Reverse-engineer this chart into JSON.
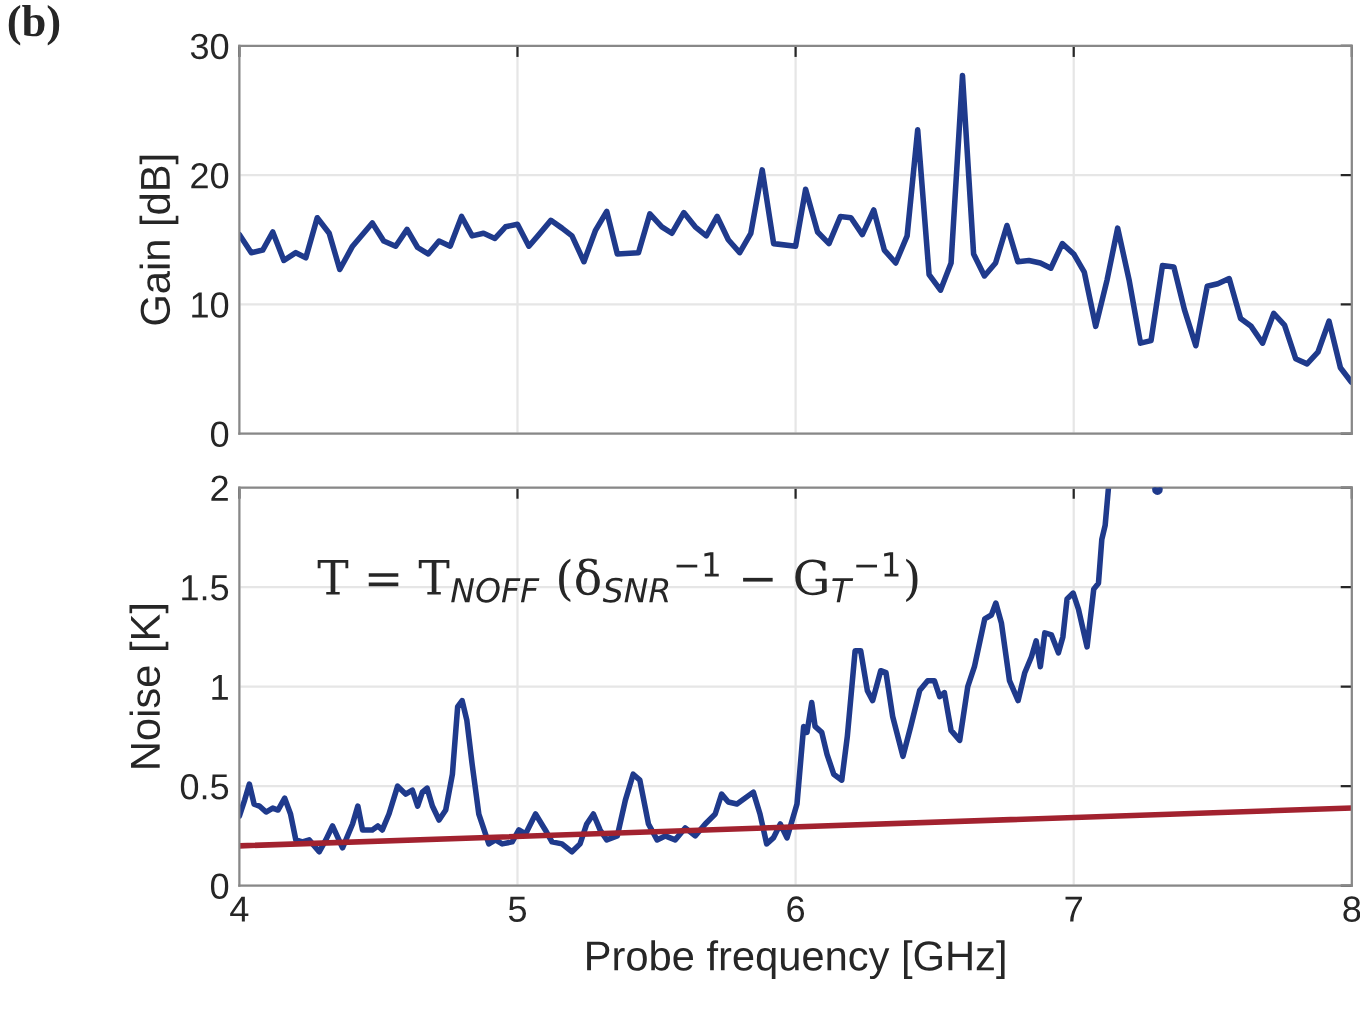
{
  "chart_data": [
    {
      "type": "line",
      "title": "(b)",
      "ylabel": "Gain [dB]",
      "xlim": [
        4,
        8
      ],
      "xticks": [
        4,
        5,
        6,
        7,
        8
      ],
      "ylim": [
        0,
        30
      ],
      "yticks": [
        0,
        10,
        20,
        30
      ],
      "grid": true,
      "tick_labels": "y",
      "series": [
        {
          "color": "#1f3a8c",
          "x": [
            4.0,
            4.043,
            4.084,
            4.12,
            4.16,
            4.203,
            4.239,
            4.28,
            4.323,
            4.361,
            4.407,
            4.478,
            4.519,
            4.562,
            4.603,
            4.641,
            4.679,
            4.718,
            4.758,
            4.799,
            4.837,
            4.878,
            4.919,
            4.957,
            5.0,
            5.041,
            5.077,
            5.12,
            5.16,
            5.196,
            5.239,
            5.28,
            5.321,
            5.359,
            5.435,
            5.476,
            5.519,
            5.555,
            5.598,
            5.639,
            5.679,
            5.718,
            5.758,
            5.799,
            5.839,
            5.88,
            5.921,
            6.0,
            6.036,
            6.079,
            6.12,
            6.161,
            6.199,
            6.24,
            6.281,
            6.319,
            6.36,
            6.401,
            6.439,
            6.48,
            6.521,
            6.559,
            6.6,
            6.64,
            6.679,
            6.719,
            6.76,
            6.799,
            6.839,
            6.88,
            6.918,
            6.959,
            7.0,
            7.038,
            7.079,
            7.12,
            7.158,
            7.199,
            7.24,
            7.278,
            7.319,
            7.36,
            7.398,
            7.439,
            7.48,
            7.518,
            7.559,
            7.6,
            7.638,
            7.679,
            7.719,
            7.758,
            7.798,
            7.839,
            7.878,
            7.918,
            7.959,
            7.998
          ],
          "values": [
            15.4,
            14.0,
            14.2,
            15.6,
            13.4,
            14.0,
            13.6,
            16.7,
            15.5,
            12.7,
            14.5,
            16.3,
            14.9,
            14.5,
            15.8,
            14.4,
            13.9,
            14.9,
            14.5,
            16.8,
            15.3,
            15.5,
            15.1,
            16.0,
            16.2,
            14.5,
            15.4,
            16.5,
            15.9,
            15.3,
            13.3,
            15.7,
            17.2,
            13.9,
            14.0,
            17.0,
            16.0,
            15.5,
            17.1,
            16.0,
            15.3,
            16.8,
            15.0,
            14.0,
            15.5,
            20.4,
            14.7,
            14.5,
            18.9,
            15.6,
            14.7,
            16.8,
            16.7,
            15.4,
            17.3,
            14.2,
            13.2,
            15.3,
            23.5,
            12.3,
            11.1,
            13.2,
            27.7,
            13.9,
            12.2,
            13.2,
            16.1,
            13.3,
            13.4,
            13.2,
            12.8,
            14.7,
            13.9,
            12.5,
            8.3,
            11.9,
            15.9,
            11.9,
            7.0,
            7.2,
            13.0,
            12.9,
            9.6,
            6.8,
            11.4,
            11.6,
            12.0,
            8.9,
            8.3,
            7.0,
            9.3,
            8.4,
            5.8,
            5.4,
            6.3,
            8.7,
            5.1,
            4.0
          ]
        }
      ]
    },
    {
      "type": "line",
      "xlabel": "Probe frequency [GHz]",
      "ylabel": "Noise [K]",
      "xlim": [
        4,
        8
      ],
      "xticks": [
        4,
        5,
        6,
        7,
        8
      ],
      "ylim": [
        0,
        2
      ],
      "yticks": [
        0,
        0.5,
        1,
        1.5,
        2
      ],
      "grid": true,
      "annotations": [
        "T = T$_{NOFF}$ (δ$_{SNR}$$^{−1}$ − G$_{T}$$^{−1}$)"
      ],
      "series": [
        {
          "color": "#1f3a8c",
          "x": [
            4.0,
            4.019,
            4.036,
            4.053,
            4.072,
            4.096,
            4.12,
            4.139,
            4.163,
            4.184,
            4.203,
            4.227,
            4.251,
            4.287,
            4.311,
            4.335,
            4.371,
            4.407,
            4.426,
            4.443,
            4.478,
            4.498,
            4.514,
            4.538,
            4.569,
            4.598,
            4.622,
            4.641,
            4.658,
            4.675,
            4.694,
            4.718,
            4.742,
            4.766,
            4.785,
            4.801,
            4.818,
            4.837,
            4.861,
            4.897,
            4.921,
            4.945,
            4.981,
            5.005,
            5.029,
            5.065,
            5.1,
            5.124,
            5.16,
            5.196,
            5.225,
            5.249,
            5.273,
            5.297,
            5.321,
            5.359,
            5.388,
            5.416,
            5.44,
            5.471,
            5.502,
            5.531,
            5.567,
            5.603,
            5.639,
            5.675,
            5.711,
            5.734,
            5.758,
            5.789,
            5.848,
            5.872,
            5.896,
            5.92,
            5.945,
            5.969,
            6.005,
            6.029,
            6.041,
            6.058,
            6.07,
            6.094,
            6.113,
            6.137,
            6.166,
            6.186,
            6.214,
            6.234,
            6.258,
            6.277,
            6.306,
            6.325,
            6.349,
            6.386,
            6.414,
            6.446,
            6.475,
            6.499,
            6.518,
            6.535,
            6.559,
            6.59,
            6.619,
            6.643,
            6.663,
            6.68,
            6.704,
            6.72,
            6.74,
            6.769,
            6.8,
            6.824,
            6.848,
            6.865,
            6.88,
            6.896,
            6.92,
            6.945,
            6.961,
            6.976,
            6.998,
            7.017,
            7.048,
            7.072,
            7.089,
            7.101,
            7.113,
            7.125
          ],
          "values": [
            0.35,
            0.43,
            0.51,
            0.41,
            0.4,
            0.37,
            0.39,
            0.38,
            0.44,
            0.36,
            0.23,
            0.22,
            0.23,
            0.17,
            0.23,
            0.3,
            0.19,
            0.31,
            0.4,
            0.28,
            0.28,
            0.3,
            0.28,
            0.36,
            0.5,
            0.46,
            0.48,
            0.4,
            0.47,
            0.49,
            0.4,
            0.33,
            0.38,
            0.56,
            0.9,
            0.93,
            0.83,
            0.61,
            0.36,
            0.21,
            0.23,
            0.21,
            0.22,
            0.28,
            0.26,
            0.36,
            0.28,
            0.22,
            0.21,
            0.17,
            0.21,
            0.31,
            0.36,
            0.28,
            0.23,
            0.25,
            0.43,
            0.56,
            0.53,
            0.31,
            0.23,
            0.25,
            0.23,
            0.29,
            0.25,
            0.31,
            0.36,
            0.46,
            0.42,
            0.41,
            0.47,
            0.36,
            0.21,
            0.24,
            0.31,
            0.24,
            0.41,
            0.8,
            0.77,
            0.92,
            0.8,
            0.77,
            0.66,
            0.56,
            0.53,
            0.75,
            1.18,
            1.18,
            0.98,
            0.93,
            1.08,
            1.07,
            0.85,
            0.65,
            0.8,
            0.98,
            1.03,
            1.03,
            0.95,
            0.97,
            0.78,
            0.73,
            1.0,
            1.1,
            1.23,
            1.34,
            1.36,
            1.42,
            1.32,
            1.03,
            0.93,
            1.07,
            1.15,
            1.23,
            1.1,
            1.27,
            1.26,
            1.17,
            1.25,
            1.44,
            1.47,
            1.39,
            1.2,
            1.49,
            1.52,
            1.74,
            1.81,
            2.0
          ]
        },
        {
          "type": "scatter",
          "color": "#1f3a8c",
          "x": [
            7.301
          ],
          "values": [
            1.99
          ]
        },
        {
          "color": "#a2222f",
          "x": [
            4,
            8
          ],
          "values": [
            0.2,
            0.39
          ]
        }
      ]
    }
  ]
}
